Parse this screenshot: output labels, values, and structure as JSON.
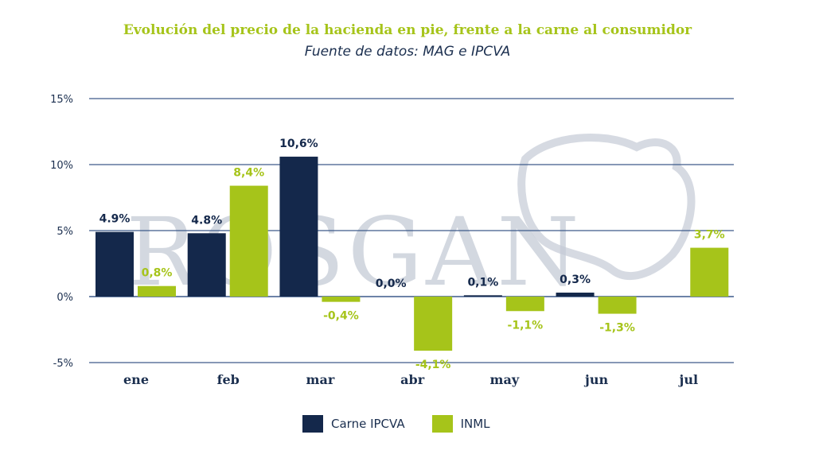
{
  "title": "Evolución del precio de la hacienda en pie, frente a la carne al consumidor",
  "subtitle": "Fuente de datos: MAG e IPCVA",
  "watermark": "ROSGAN",
  "colors": {
    "carne": "#14284b",
    "inml": "#a6c41a",
    "grid": "#3d5a8a",
    "axis": "#1b2f4f",
    "watermark": "#c5cbd6"
  },
  "chart_data": {
    "type": "bar",
    "title": "Evolución del precio de la hacienda en pie, frente a la carne al consumidor",
    "subtitle": "Fuente de datos: MAG e IPCVA",
    "categories": [
      "ene",
      "feb",
      "mar",
      "abr",
      "may",
      "jun",
      "jul"
    ],
    "ylim": [
      -5,
      15
    ],
    "yticks": [
      -5,
      0,
      5,
      10,
      15
    ],
    "ytick_labels": [
      "-5%",
      "0%",
      "5%",
      "10%",
      "15%"
    ],
    "grid": true,
    "legend_position": "bottom-center",
    "series": [
      {
        "name": "Carne IPCVA",
        "color": "#14284b",
        "values": [
          4.9,
          4.8,
          10.6,
          0.0,
          0.1,
          0.3,
          null
        ],
        "labels": [
          "4.9%",
          "4.8%",
          "10,6%",
          "0,0%",
          "0,1%",
          "0,3%",
          ""
        ]
      },
      {
        "name": "INML",
        "color": "#a6c41a",
        "values": [
          0.8,
          8.4,
          -0.4,
          -4.1,
          -1.1,
          -1.3,
          3.7
        ],
        "labels": [
          "0,8%",
          "8,4%",
          "-0,4%",
          "-4,1%",
          "-1,1%",
          "-1,3%",
          "3,7%"
        ]
      }
    ]
  }
}
